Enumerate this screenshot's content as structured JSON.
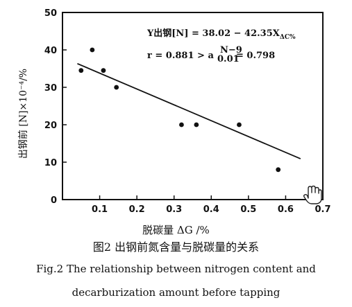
{
  "chart_data": {
    "type": "scatter",
    "title": "",
    "xlabel": "脱碳量 ΔG /%",
    "ylabel": "出钢前 [N]×10⁻⁴/%",
    "xlim": [
      0,
      0.7
    ],
    "ylim": [
      0,
      50
    ],
    "x_ticks": [
      "0.1",
      "0.2",
      "0.3",
      "0.4",
      "0.5",
      "0.6",
      "0.7"
    ],
    "y_ticks": [
      "0",
      "10",
      "20",
      "30",
      "40",
      "50"
    ],
    "points": [
      {
        "x": 0.05,
        "y": 34.5
      },
      {
        "x": 0.08,
        "y": 40
      },
      {
        "x": 0.11,
        "y": 34.5
      },
      {
        "x": 0.145,
        "y": 30
      },
      {
        "x": 0.32,
        "y": 20
      },
      {
        "x": 0.36,
        "y": 20
      },
      {
        "x": 0.475,
        "y": 20
      },
      {
        "x": 0.58,
        "y": 8
      }
    ],
    "fit_line": {
      "intercept": 38.02,
      "slope": -42.35,
      "x_range": [
        0.04,
        0.64
      ]
    },
    "annotation_line1": "Y出钢[N] = 38.02 − 42.35X",
    "annotation_line1_sub": "ΔC%",
    "annotation_line2": "r = 0.881 > a",
    "annotation_line2_sup": "N−9",
    "annotation_line2_sub": "0.01",
    "annotation_line2_end": "= 0.798",
    "grid": false,
    "legend": "none"
  },
  "caption": {
    "chinese": "图2  出钢前氮含量与脱碳量的关系",
    "english_line1": "Fig.2  The relationship between nitrogen content and",
    "english_line2": "decarburization amount before tapping"
  },
  "icons": {
    "cursor": "hand-pointer-icon"
  }
}
